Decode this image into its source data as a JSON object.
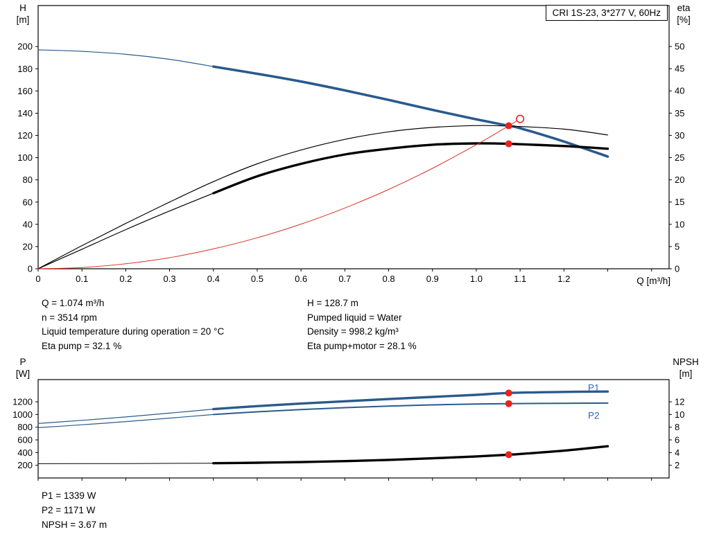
{
  "title_box": "CRI 1S-23, 3*277 V, 60Hz",
  "axis_titles": {
    "h_1": "H",
    "h_2": "[m]",
    "eta_1": "eta",
    "eta_2": "[%]",
    "p_1": "P",
    "p_2": "[W]",
    "npsh_1": "NPSH",
    "npsh_2": "[m]",
    "q": "Q [m³/h]"
  },
  "info": {
    "left": [
      "Q = 1.074 m³/h",
      "n = 3514 rpm",
      "Liquid temperature during operation = 20 °C",
      "Eta pump = 32.1 %"
    ],
    "right": [
      "H = 128.7 m",
      "Pumped liquid = Water",
      "Density = 998.2 kg/m³",
      "Eta pump+motor = 28.1 %"
    ]
  },
  "results": [
    "P1 = 1339 W",
    "P2 = 1171 W",
    "NPSH = 3.67 m"
  ],
  "colors": {
    "curve_blue": "#2a5a8c",
    "curve_black": "#000000",
    "curve_red": "#d93025",
    "dot_red": "#e8231d",
    "label_blue": "#2d62c1"
  },
  "chart_data": [
    {
      "id": "hq",
      "type": "line",
      "title": "CRI 1S-23, 3*277 V, 60Hz",
      "x_label": "Q [m³/h]",
      "y_left_label": "H [m]",
      "y_right_label": "eta [%]",
      "xlim": [
        0,
        1.44
      ],
      "ylim_left": [
        0,
        236.9
      ],
      "ylim_right": [
        0,
        59.2
      ],
      "x_ticks": {
        "values": [
          0,
          0.1,
          0.2,
          0.3,
          0.4,
          0.5,
          0.6,
          0.7,
          0.8,
          0.9,
          1.0,
          1.1,
          1.2,
          1.3,
          1.4
        ],
        "labels": [
          "0",
          "0.1",
          "0.2",
          "0.3",
          "0.4",
          "0.5",
          "0.6",
          "0.7",
          "0.8",
          "0.9",
          "1.0",
          "1.1",
          "1.2",
          "",
          ""
        ]
      },
      "y_left_ticks": [
        0,
        20,
        40,
        60,
        80,
        100,
        120,
        140,
        160,
        180,
        200
      ],
      "y_right_ticks": [
        0,
        5,
        10,
        15,
        20,
        25,
        30,
        35,
        40,
        45,
        50
      ],
      "grid": false,
      "marker_color": "#e8231d",
      "series": [
        {
          "name": "qh-curve",
          "axis": "left",
          "color": "#2a5a8c",
          "segments": [
            {
              "width": 1.2,
              "points": [
                [
                  0,
                  197
                ],
                [
                  0.1,
                  195.7
                ],
                [
                  0.2,
                  193
                ],
                [
                  0.3,
                  188.5
                ],
                [
                  0.4,
                  182
                ]
              ]
            },
            {
              "width": 3.6,
              "points": [
                [
                  0.4,
                  182
                ],
                [
                  0.5,
                  175.5
                ],
                [
                  0.6,
                  168.5
                ],
                [
                  0.7,
                  160.5
                ],
                [
                  0.8,
                  152
                ],
                [
                  0.9,
                  143
                ],
                [
                  1.0,
                  134.5
                ],
                [
                  1.074,
                  128.7
                ],
                [
                  1.1,
                  126.5
                ],
                [
                  1.2,
                  114.5
                ],
                [
                  1.3,
                  101
                ]
              ]
            }
          ]
        },
        {
          "name": "eta-pump-curve",
          "axis": "right",
          "color": "#000000",
          "segments": [
            {
              "width": 1.2,
              "points": [
                [
                  0,
                  0
                ],
                [
                  0.1,
                  5.2
                ],
                [
                  0.2,
                  10.2
                ],
                [
                  0.3,
                  15
                ],
                [
                  0.4,
                  19.6
                ],
                [
                  0.5,
                  23.6
                ],
                [
                  0.6,
                  26.7
                ],
                [
                  0.7,
                  29.1
                ],
                [
                  0.8,
                  30.8
                ],
                [
                  0.9,
                  31.8
                ],
                [
                  1.0,
                  32.2
                ],
                [
                  1.074,
                  32.1
                ],
                [
                  1.2,
                  31.4
                ],
                [
                  1.3,
                  30.1
                ]
              ]
            }
          ]
        },
        {
          "name": "eta-pump-motor-curve",
          "axis": "right",
          "color": "#000000",
          "segments": [
            {
              "width": 1.2,
              "points": [
                [
                  0,
                  0
                ],
                [
                  0.1,
                  4.4
                ],
                [
                  0.2,
                  8.8
                ],
                [
                  0.3,
                  13
                ],
                [
                  0.4,
                  17
                ]
              ]
            },
            {
              "width": 3.4,
              "points": [
                [
                  0.4,
                  17
                ],
                [
                  0.5,
                  20.8
                ],
                [
                  0.6,
                  23.6
                ],
                [
                  0.7,
                  25.7
                ],
                [
                  0.8,
                  27
                ],
                [
                  0.9,
                  27.9
                ],
                [
                  1.0,
                  28.2
                ],
                [
                  1.074,
                  28.1
                ],
                [
                  1.2,
                  27.6
                ],
                [
                  1.3,
                  27
                ]
              ]
            }
          ]
        },
        {
          "name": "system-curve",
          "axis": "left",
          "color": "#d93025",
          "segments": [
            {
              "width": 1,
              "points": [
                [
                  0,
                  0
                ],
                [
                  0.1,
                  1.1
                ],
                [
                  0.2,
                  4.5
                ],
                [
                  0.3,
                  10
                ],
                [
                  0.4,
                  17.9
                ],
                [
                  0.5,
                  27.9
                ],
                [
                  0.6,
                  40.2
                ],
                [
                  0.7,
                  54.7
                ],
                [
                  0.8,
                  71.4
                ],
                [
                  0.9,
                  90.4
                ],
                [
                  1.0,
                  111.6
                ],
                [
                  1.05,
                  123
                ],
                [
                  1.1,
                  134.9
                ]
              ]
            }
          ]
        }
      ],
      "markers": [
        {
          "name": "duty-point-qh",
          "axis": "left",
          "q": 1.074,
          "v": 128.7,
          "style": "filled"
        },
        {
          "name": "duty-point-eta-pump-motor",
          "axis": "right",
          "q": 1.074,
          "v": 28.1,
          "style": "filled"
        },
        {
          "name": "system-curve-end",
          "axis": "left",
          "q": 1.1,
          "v": 134.9,
          "style": "open"
        }
      ],
      "labels": []
    },
    {
      "id": "pn",
      "type": "line",
      "title": "",
      "x_label": "",
      "y_left_label": "P [W]",
      "y_right_label": "NPSH [m]",
      "xlim": [
        0,
        1.44
      ],
      "ylim_left": [
        0,
        1550
      ],
      "ylim_right": [
        0,
        15.5
      ],
      "x_ticks": {
        "values": [
          0,
          0.1,
          0.2,
          0.3,
          0.4,
          0.5,
          0.6,
          0.7,
          0.8,
          0.9,
          1.0,
          1.1,
          1.2,
          1.3,
          1.4
        ],
        "labels": []
      },
      "y_left_ticks": [
        200,
        400,
        600,
        800,
        1000,
        1200
      ],
      "y_right_ticks": [
        2,
        4,
        6,
        8,
        10,
        12
      ],
      "grid": false,
      "marker_color": "#e8231d",
      "series": [
        {
          "name": "p1-curve",
          "axis": "left",
          "color": "#2a5a8c",
          "segments": [
            {
              "width": 1.2,
              "points": [
                [
                  0,
                  858
                ],
                [
                  0.1,
                  908
                ],
                [
                  0.2,
                  962
                ],
                [
                  0.3,
                  1022
                ],
                [
                  0.4,
                  1085
                ]
              ]
            },
            {
              "width": 3.4,
              "points": [
                [
                  0.4,
                  1085
                ],
                [
                  0.5,
                  1132
                ],
                [
                  0.6,
                  1172
                ],
                [
                  0.7,
                  1208
                ],
                [
                  0.8,
                  1243
                ],
                [
                  0.9,
                  1277
                ],
                [
                  1.0,
                  1310
                ],
                [
                  1.074,
                  1339
                ],
                [
                  1.2,
                  1356
                ],
                [
                  1.3,
                  1362
                ]
              ]
            }
          ]
        },
        {
          "name": "p2-curve",
          "axis": "left",
          "color": "#2a5a8c",
          "segments": [
            {
              "width": 1.2,
              "points": [
                [
                  0,
                  793
                ],
                [
                  0.1,
                  838
                ],
                [
                  0.2,
                  888
                ],
                [
                  0.3,
                  943
                ],
                [
                  0.4,
                  1000
                ]
              ]
            },
            {
              "width": 2,
              "points": [
                [
                  0.4,
                  1000
                ],
                [
                  0.5,
                  1042
                ],
                [
                  0.6,
                  1078
                ],
                [
                  0.7,
                  1108
                ],
                [
                  0.8,
                  1132
                ],
                [
                  0.9,
                  1152
                ],
                [
                  1.0,
                  1165
                ],
                [
                  1.074,
                  1171
                ],
                [
                  1.2,
                  1177
                ],
                [
                  1.3,
                  1180
                ]
              ]
            }
          ]
        },
        {
          "name": "npsh-curve",
          "axis": "right",
          "color": "#000000",
          "segments": [
            {
              "width": 1,
              "points": [
                [
                  0,
                  2.25
                ],
                [
                  0.2,
                  2.27
                ],
                [
                  0.4,
                  2.33
                ]
              ]
            },
            {
              "width": 3.4,
              "points": [
                [
                  0.4,
                  2.33
                ],
                [
                  0.5,
                  2.4
                ],
                [
                  0.6,
                  2.5
                ],
                [
                  0.7,
                  2.65
                ],
                [
                  0.8,
                  2.85
                ],
                [
                  0.9,
                  3.1
                ],
                [
                  1.0,
                  3.4
                ],
                [
                  1.074,
                  3.67
                ],
                [
                  1.1,
                  3.78
                ],
                [
                  1.2,
                  4.3
                ],
                [
                  1.3,
                  5.0
                ]
              ]
            }
          ]
        }
      ],
      "markers": [
        {
          "name": "duty-point-p1",
          "axis": "left",
          "q": 1.074,
          "v": 1339,
          "style": "filled"
        },
        {
          "name": "duty-point-p2",
          "axis": "left",
          "q": 1.074,
          "v": 1171,
          "style": "filled"
        },
        {
          "name": "duty-point-npsh",
          "axis": "right",
          "q": 1.074,
          "v": 3.67,
          "style": "filled"
        }
      ],
      "labels": [
        {
          "text": "P1",
          "q": 1.268,
          "v": 1420,
          "axis": "left",
          "color": "#2d62c1"
        },
        {
          "text": "P2",
          "q": 1.268,
          "v": 980,
          "axis": "left",
          "color": "#2d62c1"
        }
      ]
    }
  ]
}
